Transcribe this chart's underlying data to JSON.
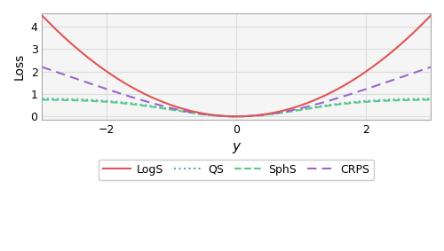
{
  "xlim": [
    -3,
    3
  ],
  "ylim": [
    -0.15,
    4.6
  ],
  "xlabel": "y",
  "ylabel": "Loss",
  "xticks": [
    -2,
    0,
    2
  ],
  "yticks": [
    0,
    1,
    2,
    3,
    4
  ],
  "grid_color": "#dddddd",
  "background_color": "#f5f5f5",
  "LogS_color": "#e05555",
  "QS_color": "#55aaaa",
  "SphS_color": "#55cc88",
  "CRPS_color": "#9966cc",
  "line_width": 1.5,
  "legend_labels": [
    "LogS",
    "QS",
    "SphS",
    "CRPS"
  ],
  "xlabel_style": "italic",
  "n_points": 400
}
